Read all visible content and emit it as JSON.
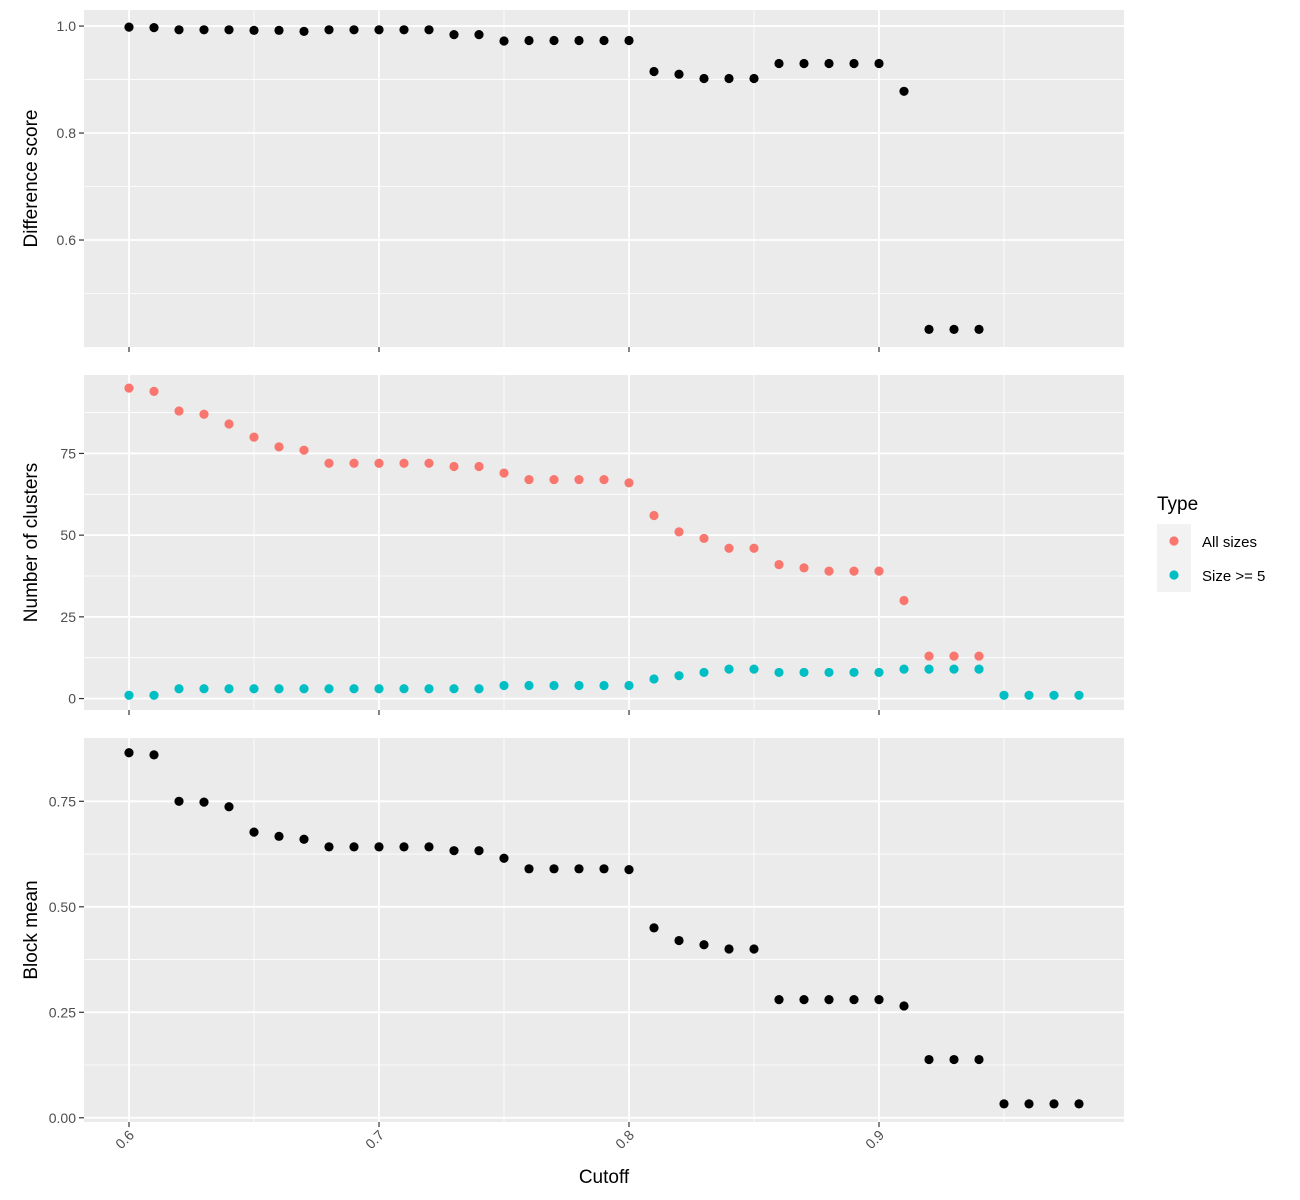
{
  "chart_data": {
    "type": "scatter",
    "x_label": "Cutoff",
    "x_range": [
      0.582,
      0.998
    ],
    "x_ticks": [
      0.6,
      0.7,
      0.8,
      0.9
    ],
    "x_tick_labels": [
      "0.6",
      "0.7",
      "0.8",
      "0.9"
    ],
    "x_minor_ticks": [
      0.65,
      0.75,
      0.85,
      0.95
    ],
    "facets": [
      {
        "ylabel": "Difference score",
        "ylim": [
          0.4,
          1.03
        ],
        "y_ticks": [
          0.6,
          0.8,
          1.0
        ],
        "y_tick_labels": [
          "0.6",
          "0.8",
          "1.0"
        ],
        "y_minor_ticks": [
          0.5,
          0.7,
          0.9
        ],
        "series": [
          {
            "color": "#000000",
            "x": [
              0.6,
              0.61,
              0.62,
              0.63,
              0.64,
              0.65,
              0.66,
              0.67,
              0.68,
              0.69,
              0.7,
              0.71,
              0.72,
              0.73,
              0.74,
              0.75,
              0.76,
              0.77,
              0.78,
              0.79,
              0.8,
              0.81,
              0.82,
              0.83,
              0.84,
              0.85,
              0.86,
              0.87,
              0.88,
              0.89,
              0.9,
              0.91,
              0.92,
              0.93,
              0.94
            ],
            "values": [
              0.998,
              0.997,
              0.993,
              0.993,
              0.993,
              0.992,
              0.992,
              0.99,
              0.993,
              0.993,
              0.993,
              0.993,
              0.993,
              0.984,
              0.984,
              0.972,
              0.973,
              0.973,
              0.973,
              0.973,
              0.973,
              0.915,
              0.91,
              0.902,
              0.902,
              0.902,
              0.93,
              0.93,
              0.93,
              0.93,
              0.93,
              0.878,
              0.433,
              0.433,
              0.433
            ]
          }
        ]
      },
      {
        "ylabel": "Number of clusters",
        "ylim": [
          -3.5,
          99
        ],
        "y_ticks": [
          0,
          25,
          50,
          75
        ],
        "y_tick_labels": [
          "0",
          "25",
          "50",
          "75"
        ],
        "y_minor_ticks": [
          12.5,
          37.5,
          62.5,
          87.5
        ],
        "series": [
          {
            "name": "All sizes",
            "color": "#F8766D",
            "x": [
              0.6,
              0.61,
              0.62,
              0.63,
              0.64,
              0.65,
              0.66,
              0.67,
              0.68,
              0.69,
              0.7,
              0.71,
              0.72,
              0.73,
              0.74,
              0.75,
              0.76,
              0.77,
              0.78,
              0.79,
              0.8,
              0.81,
              0.82,
              0.83,
              0.84,
              0.85,
              0.86,
              0.87,
              0.88,
              0.89,
              0.9,
              0.91,
              0.92,
              0.93,
              0.94
            ],
            "values": [
              95,
              94,
              88,
              87,
              84,
              80,
              77,
              76,
              72,
              72,
              72,
              72,
              72,
              71,
              71,
              69,
              67,
              67,
              67,
              67,
              66,
              56,
              51,
              49,
              46,
              46,
              41,
              40,
              39,
              39,
              39,
              30,
              13,
              13,
              13
            ]
          },
          {
            "name": "Size >= 5",
            "color": "#00BFC4",
            "x": [
              0.6,
              0.61,
              0.62,
              0.63,
              0.64,
              0.65,
              0.66,
              0.67,
              0.68,
              0.69,
              0.7,
              0.71,
              0.72,
              0.73,
              0.74,
              0.75,
              0.76,
              0.77,
              0.78,
              0.79,
              0.8,
              0.81,
              0.82,
              0.83,
              0.84,
              0.85,
              0.86,
              0.87,
              0.88,
              0.89,
              0.9,
              0.91,
              0.92,
              0.93,
              0.94,
              0.95,
              0.96,
              0.97,
              0.98
            ],
            "values": [
              1,
              1,
              3,
              3,
              3,
              3,
              3,
              3,
              3,
              3,
              3,
              3,
              3,
              3,
              3,
              4,
              4,
              4,
              4,
              4,
              4,
              6,
              7,
              8,
              9,
              9,
              8,
              8,
              8,
              8,
              8,
              9,
              9,
              9,
              9,
              1,
              1,
              1,
              1
            ]
          }
        ]
      },
      {
        "ylabel": "Block mean",
        "ylim": [
          -0.01,
          0.9
        ],
        "y_ticks": [
          0,
          0.25,
          0.5,
          0.75
        ],
        "y_tick_labels": [
          "0.00",
          "0.25",
          "0.50",
          "0.75"
        ],
        "y_minor_ticks": [
          0.125,
          0.375,
          0.625
        ],
        "series": [
          {
            "color": "#000000",
            "x": [
              0.6,
              0.61,
              0.62,
              0.63,
              0.64,
              0.65,
              0.66,
              0.67,
              0.68,
              0.69,
              0.7,
              0.71,
              0.72,
              0.73,
              0.74,
              0.75,
              0.76,
              0.77,
              0.78,
              0.79,
              0.8,
              0.81,
              0.82,
              0.83,
              0.84,
              0.85,
              0.86,
              0.87,
              0.88,
              0.89,
              0.9,
              0.91,
              0.92,
              0.93,
              0.94,
              0.95,
              0.96,
              0.97,
              0.98
            ],
            "values": [
              0.865,
              0.86,
              0.75,
              0.748,
              0.737,
              0.677,
              0.667,
              0.66,
              0.642,
              0.642,
              0.642,
              0.642,
              0.642,
              0.633,
              0.633,
              0.615,
              0.59,
              0.59,
              0.59,
              0.59,
              0.588,
              0.45,
              0.42,
              0.41,
              0.4,
              0.4,
              0.28,
              0.28,
              0.28,
              0.28,
              0.28,
              0.265,
              0.138,
              0.138,
              0.138,
              0.033,
              0.033,
              0.033,
              0.033
            ]
          }
        ]
      }
    ],
    "legend": {
      "title": "Type",
      "placement": "right",
      "items": [
        {
          "label": "All sizes",
          "color": "#F8766D"
        },
        {
          "label": "Size >= 5",
          "color": "#00BFC4"
        }
      ]
    },
    "grid": true,
    "panel_background": "#EBEBEB"
  }
}
